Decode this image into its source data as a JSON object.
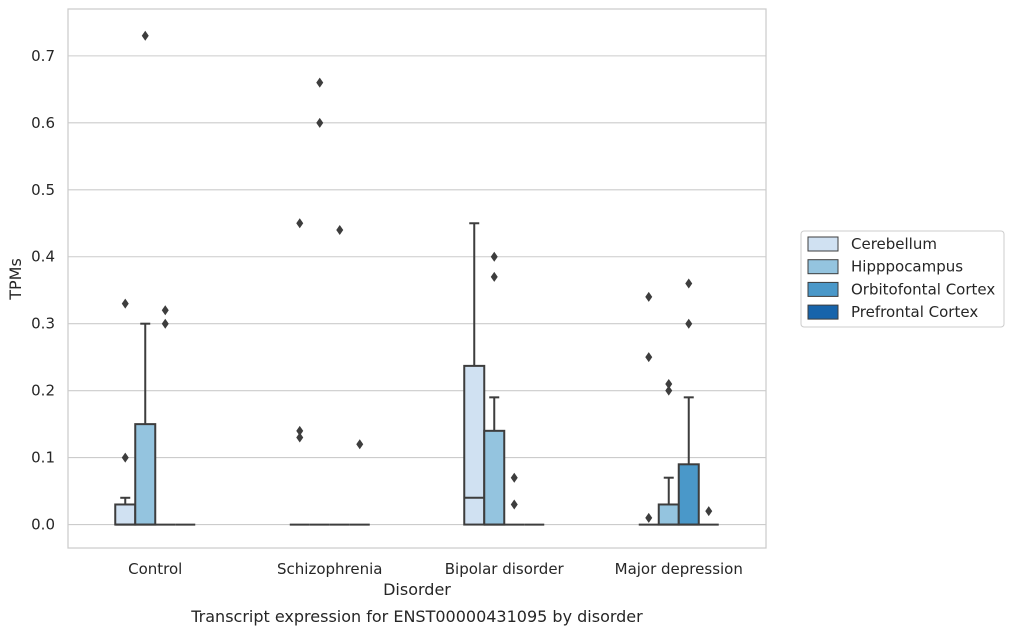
{
  "chart_data": {
    "type": "box",
    "title": "",
    "caption": "Transcript expression for ENST00000431095 by disorder",
    "xlabel": "Disorder",
    "ylabel": "TPMs",
    "ylim": [
      -0.035,
      0.77
    ],
    "yticks": [
      "0.0",
      "0.1",
      "0.2",
      "0.3",
      "0.4",
      "0.5",
      "0.6",
      "0.7"
    ],
    "grid": "horizontal",
    "legend_position": "right",
    "categories": [
      "Control",
      "Schizophrenia",
      "Bipolar disorder",
      "Major depression"
    ],
    "series": [
      {
        "name": "Cerebellum",
        "color": "#d0e1f2",
        "boxes": [
          {
            "q1": 0,
            "median": 0,
            "q3": 0.03,
            "whisker_low": 0,
            "whisker_high": 0.04,
            "outliers": [
              0.1,
              0.33
            ]
          },
          {
            "q1": 0,
            "median": 0,
            "q3": 0,
            "whisker_low": 0,
            "whisker_high": 0,
            "outliers": [
              0.13,
              0.14,
              0.45
            ]
          },
          {
            "q1": 0,
            "median": 0.04,
            "q3": 0.237,
            "whisker_low": 0,
            "whisker_high": 0.45,
            "outliers": []
          },
          {
            "q1": 0,
            "median": 0,
            "q3": 0,
            "whisker_low": 0,
            "whisker_high": 0,
            "outliers": [
              0.01,
              0.25,
              0.34
            ]
          }
        ]
      },
      {
        "name": "Hipppocampus",
        "color": "#94c4df",
        "boxes": [
          {
            "q1": 0,
            "median": 0,
            "q3": 0.15,
            "whisker_low": 0,
            "whisker_high": 0.3,
            "outliers": [
              0.73
            ]
          },
          {
            "q1": 0,
            "median": 0,
            "q3": 0,
            "whisker_low": 0,
            "whisker_high": 0,
            "outliers": [
              0.6,
              0.66
            ]
          },
          {
            "q1": 0,
            "median": 0,
            "q3": 0.14,
            "whisker_low": 0,
            "whisker_high": 0.19,
            "outliers": [
              0.37,
              0.4
            ]
          },
          {
            "q1": 0,
            "median": 0,
            "q3": 0.03,
            "whisker_low": 0,
            "whisker_high": 0.07,
            "outliers": [
              0.2,
              0.21
            ]
          }
        ]
      },
      {
        "name": "Orbitofontal Cortex",
        "color": "#4a98c9",
        "boxes": [
          {
            "q1": 0,
            "median": 0,
            "q3": 0,
            "whisker_low": 0,
            "whisker_high": 0,
            "outliers": [
              0.3,
              0.32
            ]
          },
          {
            "q1": 0,
            "median": 0,
            "q3": 0,
            "whisker_low": 0,
            "whisker_high": 0,
            "outliers": [
              0.44
            ]
          },
          {
            "q1": 0,
            "median": 0,
            "q3": 0,
            "whisker_low": 0,
            "whisker_high": 0,
            "outliers": [
              0.03,
              0.07
            ]
          },
          {
            "q1": 0,
            "median": 0,
            "q3": 0.09,
            "whisker_low": 0,
            "whisker_high": 0.19,
            "outliers": [
              0.3,
              0.36
            ]
          }
        ]
      },
      {
        "name": "Prefrontal Cortex",
        "color": "#1764ab",
        "boxes": [
          {
            "q1": 0,
            "median": 0,
            "q3": 0,
            "whisker_low": 0,
            "whisker_high": 0,
            "outliers": []
          },
          {
            "q1": 0,
            "median": 0,
            "q3": 0,
            "whisker_low": 0,
            "whisker_high": 0,
            "outliers": [
              0.12
            ]
          },
          {
            "q1": 0,
            "median": 0,
            "q3": 0,
            "whisker_low": 0,
            "whisker_high": 0,
            "outliers": []
          },
          {
            "q1": 0,
            "median": 0,
            "q3": 0,
            "whisker_low": 0,
            "whisker_high": 0,
            "outliers": [
              0.02
            ]
          }
        ]
      }
    ]
  },
  "colors": {
    "grid": "#cccccc",
    "frame": "#cccccc",
    "line": "#3d3d3d",
    "text": "#262626"
  }
}
